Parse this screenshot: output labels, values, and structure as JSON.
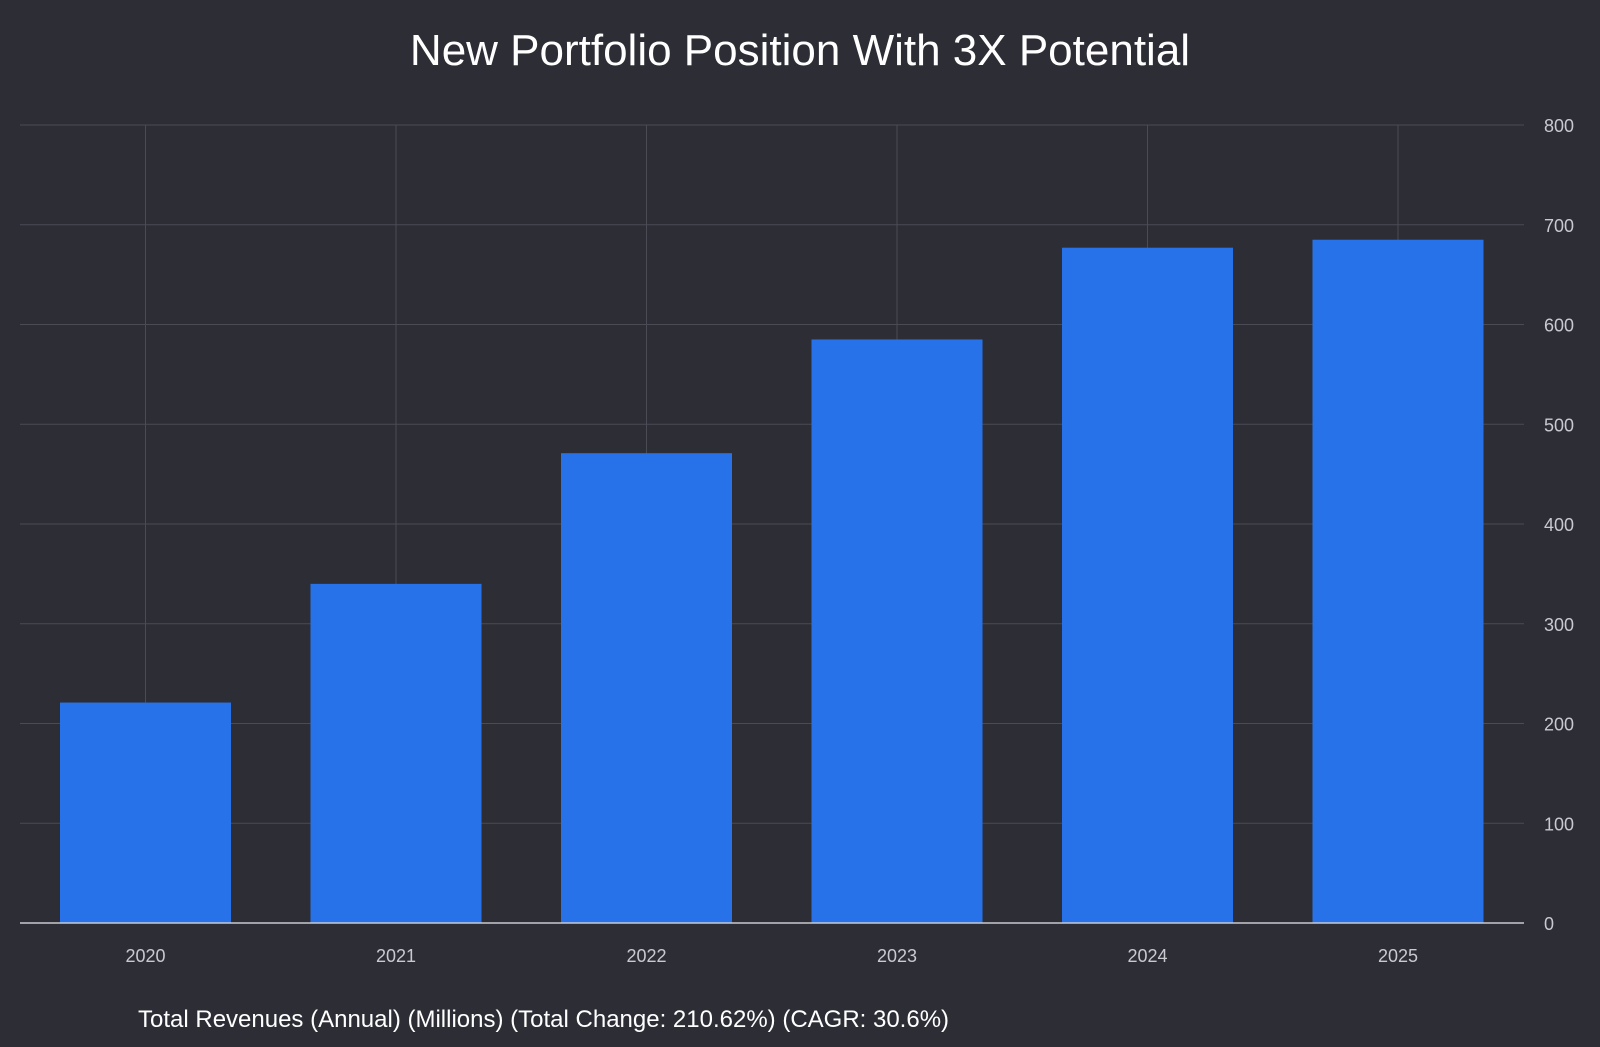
{
  "chart_data": {
    "type": "bar",
    "title": "New Portfolio Position With 3X Potential",
    "categories": [
      "2020",
      "2021",
      "2022",
      "2023",
      "2024",
      "2025"
    ],
    "series": [
      {
        "values": [
          221,
          340,
          471,
          585,
          677,
          685
        ]
      }
    ],
    "xlabel": "Total Revenues (Annual) (Millions) (Total Change: 210.62%) (CAGR: 30.6%)",
    "ylabel": "",
    "ylim": [
      0,
      800
    ],
    "yticks": [
      "0",
      "100",
      "200",
      "300",
      "400",
      "500",
      "600",
      "700",
      "800"
    ],
    "y_axis_side": "right",
    "grid": true,
    "legend": "none",
    "colors": {
      "background": "#2c2d35",
      "bar": "#2872e9",
      "grid": "#4a4b54",
      "axis": "#c9cad0",
      "tick_text": "#c9cad0",
      "title_text": "#ffffff"
    }
  }
}
